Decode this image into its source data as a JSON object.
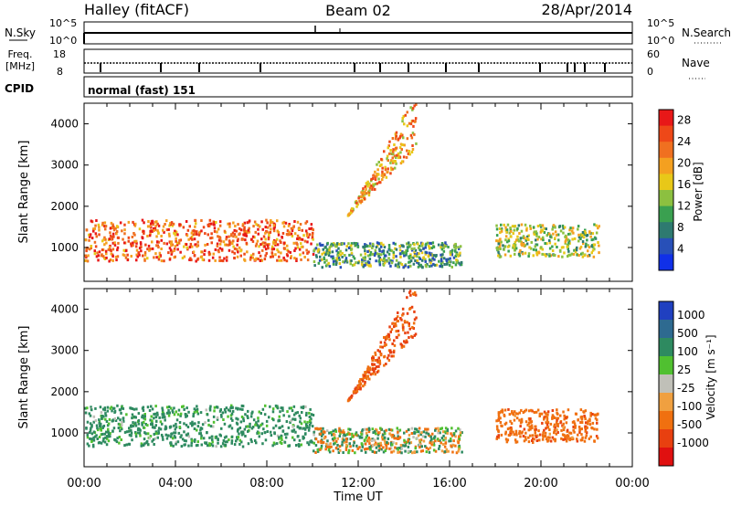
{
  "header": {
    "station": "Halley (fitACF)",
    "beam": "Beam 02",
    "date": "28/Apr/2014"
  },
  "top_panels": {
    "nsky": {
      "label": "N.Sky",
      "tick_top": "10^5",
      "tick_bottom": "10^0",
      "right_label": "N.Search",
      "right_tick_top": "10^5",
      "right_tick_bottom": "10^0"
    },
    "freq": {
      "label_line1": "Freq.",
      "label_line2": "[MHz]",
      "tick_top": "18",
      "tick_bottom": "8",
      "right_label": "Nave",
      "right_tick_top": "60",
      "right_tick_bottom": "0"
    },
    "cpid": {
      "label": "CPID",
      "value": "normal (fast) 151"
    }
  },
  "colorbars": {
    "power": {
      "title": "Power [dB]",
      "ticks": [
        "4",
        "8",
        "12",
        "16",
        "20",
        "24",
        "28"
      ],
      "colors": [
        "#1030e8",
        "#2850b8",
        "#2e7a70",
        "#3aa050",
        "#8cc040",
        "#e8c818",
        "#f4a020",
        "#f07020",
        "#ee4818",
        "#e81818"
      ]
    },
    "velocity": {
      "title": "Velocity [m s⁻¹]",
      "ticks": [
        "1000",
        "500",
        "100",
        "25",
        "-25",
        "-100",
        "-500",
        "-1000"
      ],
      "colors": [
        "#2040c0",
        "#2e6a90",
        "#2e8a60",
        "#50c030",
        "#c0c0b8",
        "#f0a040",
        "#f07010",
        "#e84010",
        "#e01010"
      ]
    }
  },
  "x_axis": {
    "ticks": [
      "00:00",
      "04:00",
      "08:00",
      "12:00",
      "16:00",
      "20:00",
      "00:00"
    ],
    "label": "Time UT"
  },
  "chart_data": [
    {
      "type": "heatmap",
      "title": "",
      "quantity": "Power",
      "units": "dB",
      "xlabel": "Time UT",
      "ylabel": "Slant Range [km]",
      "xlim": [
        0,
        24
      ],
      "ylim": [
        180,
        4500
      ],
      "yticks": [
        1000,
        2000,
        3000,
        4000
      ],
      "color_range": [
        0,
        30
      ],
      "features": [
        {
          "name": "near-range band",
          "t_start": 0.0,
          "t_end": 10.0,
          "range_start": 700,
          "range_end": 1700,
          "power_typical": 24
        },
        {
          "name": "midday band",
          "t_start": 10.0,
          "t_end": 16.5,
          "range_start": 550,
          "range_end": 1150,
          "power_typical": 10
        },
        {
          "name": "far-range streak",
          "t_start": 11.5,
          "t_end": 14.5,
          "range_start": 1800,
          "range_end": 4500,
          "power_typical": 20
        },
        {
          "name": "evening band",
          "t_start": 18.0,
          "t_end": 22.5,
          "range_start": 800,
          "range_end": 1600,
          "power_typical": 14
        }
      ]
    },
    {
      "type": "heatmap",
      "title": "",
      "quantity": "Velocity",
      "units": "m s^-1",
      "xlabel": "Time UT",
      "ylabel": "Slant Range [km]",
      "xlim": [
        0,
        24
      ],
      "ylim": [
        180,
        4500
      ],
      "yticks": [
        1000,
        2000,
        3000,
        4000
      ],
      "color_levels": [
        1000,
        500,
        100,
        25,
        -25,
        -100,
        -500,
        -1000
      ],
      "features": [
        {
          "name": "near-range band",
          "t_start": 0.0,
          "t_end": 10.0,
          "range_start": 700,
          "range_end": 1700,
          "velocity_typical": 150
        },
        {
          "name": "midday band",
          "t_start": 10.0,
          "t_end": 16.5,
          "range_start": 550,
          "range_end": 1150,
          "velocity_typical": 0
        },
        {
          "name": "far-range streak",
          "t_start": 11.5,
          "t_end": 14.5,
          "range_start": 1800,
          "range_end": 4500,
          "velocity_typical": -300
        },
        {
          "name": "evening band",
          "t_start": 18.0,
          "t_end": 22.5,
          "range_start": 800,
          "range_end": 1600,
          "velocity_typical": -200
        }
      ]
    }
  ]
}
